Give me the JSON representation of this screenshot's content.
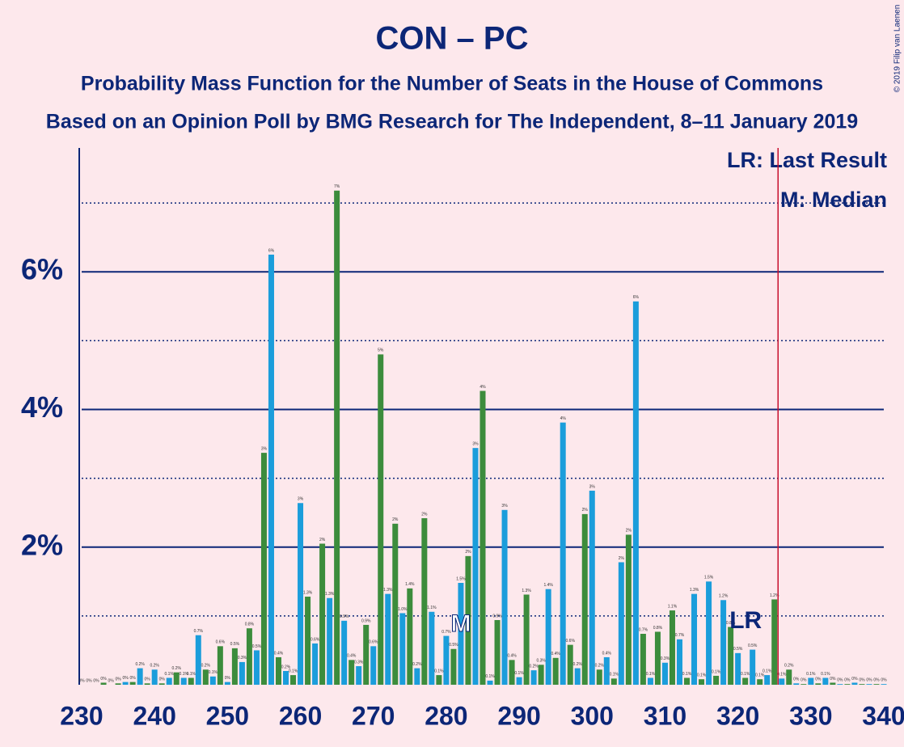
{
  "chart_data": {
    "type": "bar",
    "title": "CON – PC",
    "subtitle": "Probability Mass Function for the Number of Seats in the House of Commons",
    "subtitle2": "Based on an Opinion Poll by BMG Research for The Independent, 8–11 January 2019",
    "copyright": "© 2019 Filip van Laenen",
    "x": [
      230,
      231,
      232,
      233,
      234,
      235,
      236,
      237,
      238,
      239,
      240,
      241,
      242,
      243,
      244,
      245,
      246,
      247,
      248,
      249,
      250,
      251,
      252,
      253,
      254,
      255,
      256,
      257,
      258,
      259,
      260,
      261,
      262,
      263,
      264,
      265,
      266,
      267,
      268,
      269,
      270,
      271,
      272,
      273,
      274,
      275,
      276,
      277,
      278,
      279,
      280,
      281,
      282,
      283,
      284,
      285,
      286,
      287,
      288,
      289,
      290,
      291,
      292,
      293,
      294,
      295,
      296,
      297,
      298,
      299,
      300,
      301,
      302,
      303,
      304,
      305,
      306,
      307,
      308,
      309,
      310,
      311,
      312,
      313,
      314,
      315,
      316,
      317,
      318,
      319,
      320,
      321,
      322,
      323,
      324,
      325,
      326,
      327,
      328,
      329,
      330,
      331,
      332,
      333,
      334,
      335,
      336,
      337,
      338,
      339,
      340
    ],
    "values": [
      0,
      0,
      0,
      0.03,
      0,
      0.02,
      0.04,
      0.04,
      0.24,
      0.02,
      0.22,
      0.02,
      0.1,
      0.18,
      0.1,
      0.1,
      0.72,
      0.22,
      0.12,
      0.56,
      0.04,
      0.53,
      0.33,
      0.82,
      0.5,
      3.37,
      6.25,
      0.4,
      0.2,
      0.14,
      2.64,
      1.28,
      0.6,
      2.05,
      1.26,
      7.18,
      0.93,
      0.36,
      0.27,
      0.87,
      0.56,
      4.8,
      1.32,
      2.34,
      1.04,
      1.4,
      0.24,
      2.42,
      1.06,
      0.14,
      0.71,
      0.52,
      1.48,
      1.87,
      3.44,
      4.27,
      0.06,
      0.94,
      2.54,
      0.36,
      0.11,
      1.31,
      0.21,
      0.29,
      1.39,
      0.39,
      3.81,
      0.58,
      0.24,
      2.48,
      2.82,
      0.22,
      0.4,
      0.09,
      1.78,
      2.18,
      5.57,
      0.74,
      0.1,
      0.77,
      0.32,
      1.08,
      0.66,
      0.1,
      1.32,
      0.08,
      1.5,
      0.13,
      1.23,
      0.84,
      0.46,
      0.1,
      0.51,
      0.08,
      0.14,
      1.24,
      0.09,
      0.22,
      0.02,
      0.01,
      0.1,
      0.02,
      0.1,
      0.03,
      0.01,
      0.01,
      0.03,
      0.01,
      0.01,
      0.01,
      0.01
    ],
    "value_labels": [
      "0%",
      "0%",
      "0%",
      "0%",
      "0%",
      "0%",
      "0%",
      "0%",
      "0.2%",
      "0%",
      "0.2%",
      "0%",
      "0.1%",
      "0.2%",
      "0.1%",
      "0.1%",
      "0.7%",
      "0.2%",
      "0.1%",
      "0.6%",
      "0%",
      "0.5%",
      "0.3%",
      "0.8%",
      "0.5%",
      "3%",
      "6%",
      "0.4%",
      "0.2%",
      "0.1%",
      "3%",
      "1.3%",
      "0.6%",
      "2%",
      "1.3%",
      "7%",
      "0.9%",
      "0.4%",
      "0.3%",
      "0.9%",
      "0.6%",
      "5%",
      "1.3%",
      "2%",
      "1.0%",
      "1.4%",
      "0.2%",
      "2%",
      "1.1%",
      "0.1%",
      "0.7%",
      "0.5%",
      "1.5%",
      "2%",
      "3%",
      "4%",
      "0.1%",
      "0.9%",
      "3%",
      "0.4%",
      "0.1%",
      "1.3%",
      "0.2%",
      "0.3%",
      "1.4%",
      "0.4%",
      "4%",
      "0.6%",
      "0.2%",
      "2%",
      "3%",
      "0.2%",
      "0.4%",
      "0.1%",
      "2%",
      "2%",
      "6%",
      "0.7%",
      "0.1%",
      "0.8%",
      "0.3%",
      "1.1%",
      "0.7%",
      "0.1%",
      "1.3%",
      "0.1%",
      "1.5%",
      "0.1%",
      "1.2%",
      "0.8%",
      "0.5%",
      "0.1%",
      "0.5%",
      "0.1%",
      "0.1%",
      "1.2%",
      "0.1%",
      "0.2%",
      "0%",
      "0%",
      "0.1%",
      "0%",
      "0.1%",
      "0%",
      "0%",
      "0%",
      "0%",
      "0%",
      "0%",
      "0%",
      "0%"
    ],
    "colors": [
      "#1b9ddb",
      "#3c8c3c"
    ],
    "xlim": [
      230,
      340
    ],
    "xticks": [
      230,
      240,
      250,
      260,
      270,
      280,
      290,
      300,
      310,
      320,
      330,
      340
    ],
    "ylim": [
      0,
      7.8
    ],
    "yticks": [
      {
        "value": 2,
        "label": "2%"
      },
      {
        "value": 4,
        "label": "4%"
      },
      {
        "value": 6,
        "label": "6%"
      }
    ],
    "minor_yticks": [
      1,
      3,
      5,
      7
    ],
    "grid": true,
    "median": {
      "value": 282,
      "label": "M"
    },
    "last_result": {
      "value": 326,
      "label": "LR"
    },
    "legend": [
      "LR: Last Result",
      "M: Median"
    ]
  }
}
